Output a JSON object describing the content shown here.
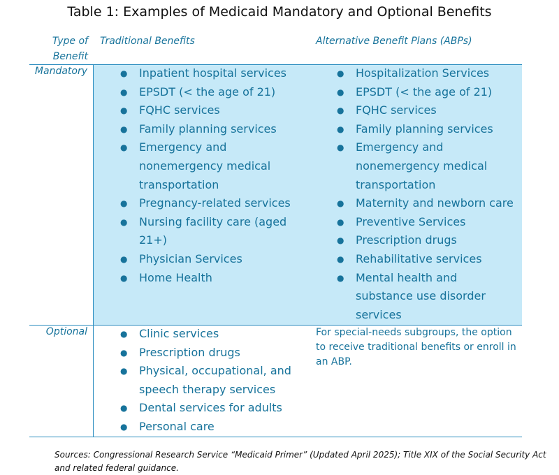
{
  "title": "Table 1: Examples of Medicaid Mandatory and Optional Benefits",
  "table": {
    "headers": [
      "Type of Benefit",
      "Traditional Benefits",
      "Alternative Benefit Plans (ABPs)"
    ],
    "rows": [
      {
        "type": "Mandatory",
        "traditional": [
          "Inpatient hospital services",
          "EPSDT (< the age of 21)",
          "FQHC services",
          "Family planning services",
          "Emergency and nonemergency medical transportation",
          "Pregnancy-related services",
          "Nursing facility care (aged 21+)",
          "Physician Services",
          "Home Health"
        ],
        "alternative": [
          "Hospitalization Services",
          "EPSDT (< the age of 21)",
          "FQHC services",
          "Family planning services",
          "Emergency and nonemergency medical transportation",
          "Maternity and newborn care",
          "Preventive Services",
          "Prescription drugs",
          "Rehabilitative services",
          "Mental health and substance use disorder services"
        ]
      },
      {
        "type": "Optional",
        "traditional": [
          "Clinic services",
          "Prescription drugs",
          "Physical, occupational, and speech therapy services",
          "Dental services for adults",
          "Personal care"
        ],
        "alternative": "For special-needs subgroups, the option to receive traditional benefits or enroll in an ABP."
      }
    ]
  },
  "sources": "Sources: Congressional Research Service “Medicaid Primer” (Updated April 2025); Title XIX of the Social Security Act and related federal guidance."
}
